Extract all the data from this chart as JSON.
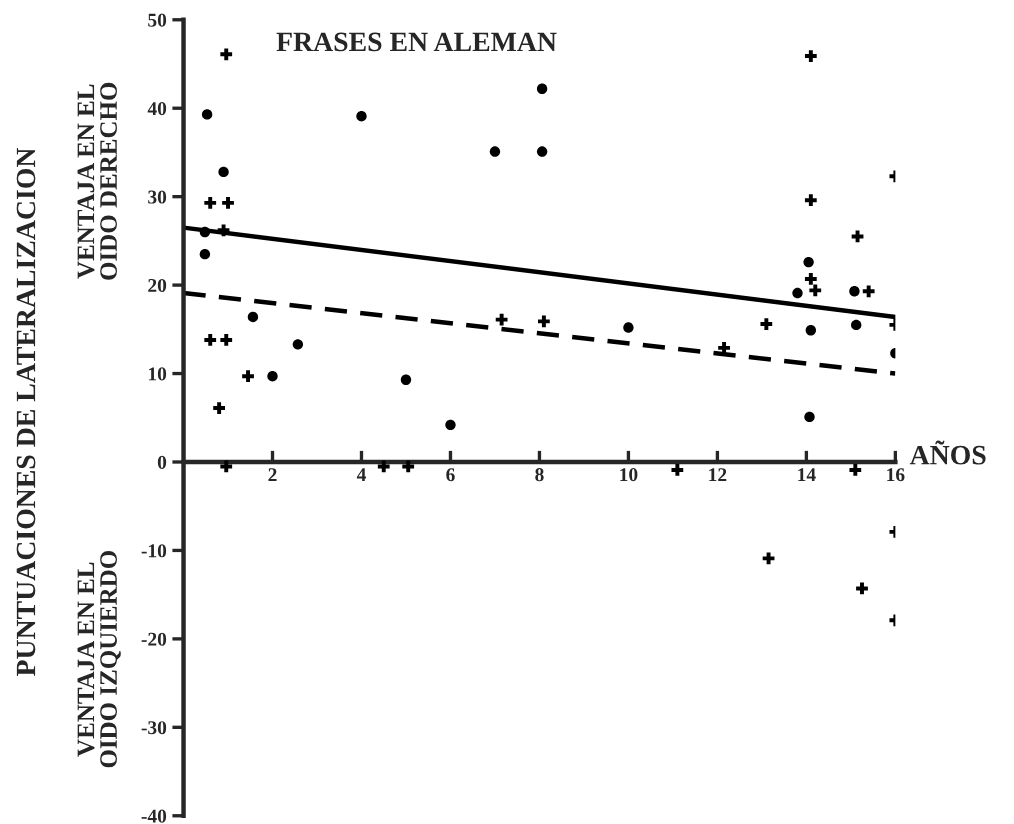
{
  "chart_data": {
    "type": "scatter",
    "title": "FRASES EN ALEMAN",
    "xlabel": "AÑOS",
    "ylabel": "PUNTUACIONES DE LATERALIZACION",
    "annotations": [
      "VENTAJA EN EL\nOIDO DERECHO",
      "VENTAJA EN EL\nOIDO IZQUIERDO"
    ],
    "xlim": [
      0,
      16
    ],
    "xticks": [
      2,
      4,
      6,
      8,
      10,
      12,
      14,
      16
    ],
    "ylim": [
      -40,
      50
    ],
    "yticks": [
      -40,
      -30,
      -20,
      -10,
      0,
      10,
      20,
      30,
      40,
      50
    ],
    "grid": false,
    "legend": false,
    "series": [
      {
        "marker": "cross",
        "color": "#000000",
        "x": [
          0.96,
          0.6,
          1.0,
          0.9,
          0.6,
          0.96,
          0.8,
          1.45,
          7.15,
          8.1,
          12.15,
          13.1,
          14.1,
          14.1,
          14.1,
          14.2,
          15.15,
          15.4,
          16,
          16,
          0.96,
          4.5,
          5.05,
          11.1,
          15.1,
          16,
          13.15,
          15.25,
          16
        ],
        "values": [
          46.1,
          29.3,
          29.3,
          26.2,
          13.8,
          13.8,
          6.1,
          9.7,
          16.1,
          15.9,
          12.9,
          15.6,
          45.9,
          29.6,
          20.7,
          19.4,
          25.5,
          19.3,
          32.3,
          15.5,
          -0.5,
          -0.5,
          -0.5,
          -0.9,
          -0.9,
          -7.9,
          -10.9,
          -14.3,
          -17.9
        ]
      },
      {
        "marker": "circle",
        "color": "#000000",
        "x": [
          0.53,
          0.9,
          0.48,
          0.48,
          1.56,
          2.0,
          2.57,
          4.0,
          5.0,
          6.0,
          7.0,
          8.06,
          8.06,
          10.0,
          14.05,
          13.8,
          14.1,
          14.07,
          15.08,
          15.12,
          16
        ],
        "values": [
          39.3,
          32.8,
          26.0,
          23.5,
          16.4,
          9.7,
          13.3,
          39.1,
          9.3,
          4.2,
          35.1,
          42.2,
          35.1,
          15.2,
          22.6,
          19.1,
          14.9,
          5.1,
          19.3,
          15.5,
          12.3
        ]
      },
      {
        "type": "line",
        "line_style": "solid",
        "color": "#000000",
        "x": [
          0,
          16
        ],
        "values": [
          26.5,
          16.4
        ]
      },
      {
        "type": "line",
        "line_style": "dashed",
        "color": "#000000",
        "x": [
          0,
          16
        ],
        "values": [
          19.1,
          10.0
        ]
      }
    ]
  }
}
